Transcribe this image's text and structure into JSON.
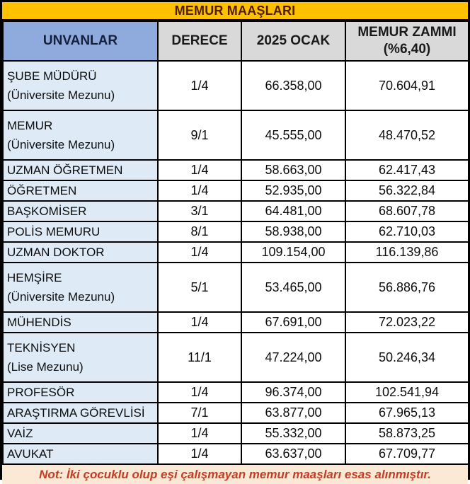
{
  "title": "MEMUR MAAŞLARI",
  "header": {
    "col1": "UNVANLAR",
    "col2": "DERECE",
    "col3": "2025 OCAK",
    "col4_line1": "MEMUR ZAMMI",
    "col4_line2": "(%6,40)"
  },
  "rows": [
    {
      "name": "ŞUBE MÜDÜRÜ",
      "subtitle": "(Üniversite Mezunu)",
      "derece": "1/4",
      "ocak": "66.358,00",
      "zam": "70.604,91"
    },
    {
      "name": "MEMUR",
      "subtitle": "(Üniversite Mezunu)",
      "derece": "9/1",
      "ocak": "45.555,00",
      "zam": "48.470,52"
    },
    {
      "name": "UZMAN ÖĞRETMEN",
      "subtitle": "",
      "derece": "1/4",
      "ocak": "58.663,00",
      "zam": "62.417,43"
    },
    {
      "name": "ÖĞRETMEN",
      "subtitle": "",
      "derece": "1/4",
      "ocak": "52.935,00",
      "zam": "56.322,84"
    },
    {
      "name": "BAŞKOMİSER",
      "subtitle": "",
      "derece": "3/1",
      "ocak": "64.481,00",
      "zam": "68.607,78"
    },
    {
      "name": "POLİS MEMURU",
      "subtitle": "",
      "derece": "8/1",
      "ocak": "58.938,00",
      "zam": "62.710,03"
    },
    {
      "name": "UZMAN DOKTOR",
      "subtitle": "",
      "derece": "1/4",
      "ocak": "109.154,00",
      "zam": "116.139,86"
    },
    {
      "name": "HEMŞİRE",
      "subtitle": "(Üniversite Mezunu)",
      "derece": "5/1",
      "ocak": "53.465,00",
      "zam": "56.886,76"
    },
    {
      "name": "MÜHENDİS",
      "subtitle": "",
      "derece": "1/4",
      "ocak": "67.691,00",
      "zam": "72.023,22"
    },
    {
      "name": "TEKNİSYEN",
      "subtitle": "(Lise Mezunu)",
      "derece": "11/1",
      "ocak": "47.224,00",
      "zam": "50.246,34"
    },
    {
      "name": "PROFESÖR",
      "subtitle": "",
      "derece": "1/4",
      "ocak": "96.374,00",
      "zam": "102.541,94"
    },
    {
      "name": "ARAŞTIRMA GÖREVLİSİ",
      "subtitle": "",
      "derece": "7/1",
      "ocak": "63.877,00",
      "zam": "67.965,13"
    },
    {
      "name": "VAİZ",
      "subtitle": "",
      "derece": "1/4",
      "ocak": "55.332,00",
      "zam": "58.873,25"
    },
    {
      "name": "AVUKAT",
      "subtitle": "",
      "derece": "1/4",
      "ocak": "63.637,00",
      "zam": "67.709,77"
    }
  ],
  "note": "Not: İki çocuklu olup eşi çalışmayan memur maaşları esas alınmıştır.",
  "colors": {
    "title_bg": "#FFC000",
    "title_text": "#512008",
    "header_blue_bg": "#8FAADC",
    "header_gray_bg": "#D9D9D9",
    "name_column_bg": "#DEEBF7",
    "note_bg": "#FBE9D5",
    "note_text": "#C63B24",
    "border": "#000000"
  },
  "chart_data": {
    "type": "table",
    "title": "MEMUR MAAŞLARI",
    "columns": [
      "UNVANLAR",
      "DERECE",
      "2025 OCAK",
      "MEMUR ZAMMI (%6,40)"
    ],
    "rows": [
      [
        "ŞUBE MÜDÜRÜ (Üniversite Mezunu)",
        "1/4",
        "66.358,00",
        "70.604,91"
      ],
      [
        "MEMUR (Üniversite Mezunu)",
        "9/1",
        "45.555,00",
        "48.470,52"
      ],
      [
        "UZMAN ÖĞRETMEN",
        "1/4",
        "58.663,00",
        "62.417,43"
      ],
      [
        "ÖĞRETMEN",
        "1/4",
        "52.935,00",
        "56.322,84"
      ],
      [
        "BAŞKOMİSER",
        "3/1",
        "64.481,00",
        "68.607,78"
      ],
      [
        "POLİS MEMURU",
        "8/1",
        "58.938,00",
        "62.710,03"
      ],
      [
        "UZMAN DOKTOR",
        "1/4",
        "109.154,00",
        "116.139,86"
      ],
      [
        "HEMŞİRE (Üniversite Mezunu)",
        "5/1",
        "53.465,00",
        "56.886,76"
      ],
      [
        "MÜHENDİS",
        "1/4",
        "67.691,00",
        "72.023,22"
      ],
      [
        "TEKNİSYEN (Lise Mezunu)",
        "11/1",
        "47.224,00",
        "50.246,34"
      ],
      [
        "PROFESÖR",
        "1/4",
        "96.374,00",
        "102.541,94"
      ],
      [
        "ARAŞTIRMA GÖREVLİSİ",
        "7/1",
        "63.877,00",
        "67.965,13"
      ],
      [
        "VAİZ",
        "1/4",
        "55.332,00",
        "58.873,25"
      ],
      [
        "AVUKAT",
        "1/4",
        "63.637,00",
        "67.709,77"
      ]
    ],
    "note": "Not: İki çocuklu olup eşi çalışmayan memur maaşları esas alınmıştır."
  }
}
